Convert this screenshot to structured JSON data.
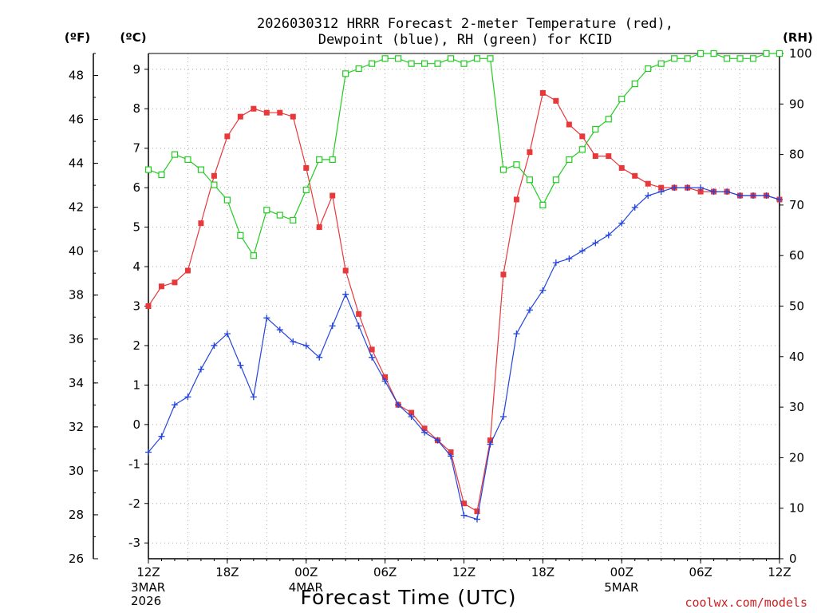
{
  "chart_data": {
    "type": "line",
    "title_line1": "2026030312 HRRR Forecast 2-meter Temperature (red),",
    "title_line2": "Dewpoint (blue), RH (green) for KCID",
    "xlabel": "Forecast Time (UTC)",
    "credit": "coolwx.com/models",
    "units": {
      "fahrenheit": "(ºF)",
      "celsius": "(ºC)",
      "rh": "(RH)"
    },
    "celsius_axis": {
      "range": [
        -3.4,
        9.4
      ],
      "ticks": [
        "-3",
        "-2",
        "-1",
        "0",
        "1",
        "2",
        "3",
        "4",
        "5",
        "6",
        "7",
        "8",
        "9"
      ]
    },
    "fahrenheit_axis": {
      "range": [
        26,
        49
      ],
      "ticks": [
        "26",
        "28",
        "30",
        "32",
        "34",
        "36",
        "38",
        "40",
        "42",
        "44",
        "46",
        "48"
      ]
    },
    "rh_axis": {
      "range": [
        0,
        100
      ],
      "ticks": [
        "0",
        "10",
        "20",
        "30",
        "40",
        "50",
        "60",
        "70",
        "80",
        "90",
        "100"
      ]
    },
    "x_axis": {
      "range_hours": [
        0,
        48
      ],
      "ticks": [
        {
          "hour": 0,
          "label": "12Z",
          "sub1": "3MAR",
          "sub2": "2026"
        },
        {
          "hour": 6,
          "label": "18Z",
          "sub1": "",
          "sub2": ""
        },
        {
          "hour": 12,
          "label": "00Z",
          "sub1": "4MAR",
          "sub2": ""
        },
        {
          "hour": 18,
          "label": "06Z",
          "sub1": "",
          "sub2": ""
        },
        {
          "hour": 24,
          "label": "12Z",
          "sub1": "",
          "sub2": ""
        },
        {
          "hour": 30,
          "label": "18Z",
          "sub1": "",
          "sub2": ""
        },
        {
          "hour": 36,
          "label": "00Z",
          "sub1": "5MAR",
          "sub2": ""
        },
        {
          "hour": 42,
          "label": "06Z",
          "sub1": "",
          "sub2": ""
        },
        {
          "hour": 48,
          "label": "12Z",
          "sub1": "",
          "sub2": ""
        }
      ]
    },
    "grid": true,
    "colors": {
      "temperature": "#e8383a",
      "dewpoint": "#2244dd",
      "rh": "#22cc22",
      "grid": "#aaaaaa"
    },
    "series": [
      {
        "key": "temperature",
        "axis": "celsius",
        "marker": "filled-square",
        "values": [
          3.0,
          3.5,
          3.6,
          3.9,
          5.1,
          6.3,
          7.3,
          7.8,
          8.0,
          7.9,
          7.9,
          7.8,
          6.5,
          5.0,
          5.8,
          3.9,
          2.8,
          1.9,
          1.2,
          0.5,
          0.3,
          -0.1,
          -0.4,
          -0.7,
          -2.0,
          -2.2,
          -0.4,
          3.8,
          5.7,
          6.9,
          8.4,
          8.2,
          7.6,
          7.3,
          6.8,
          6.8,
          6.5,
          6.3,
          6.1,
          6.0,
          6.0,
          6.0,
          5.9,
          5.9,
          5.9,
          5.8,
          5.8,
          5.8,
          5.7
        ]
      },
      {
        "key": "dewpoint",
        "axis": "celsius",
        "marker": "plus",
        "values": [
          -0.7,
          -0.3,
          0.5,
          0.7,
          1.4,
          2.0,
          2.3,
          1.5,
          0.7,
          2.7,
          2.4,
          2.1,
          2.0,
          1.7,
          2.5,
          3.3,
          2.5,
          1.7,
          1.1,
          0.5,
          0.2,
          -0.2,
          -0.4,
          -0.8,
          -2.3,
          -2.4,
          -0.5,
          0.2,
          2.3,
          2.9,
          3.4,
          4.1,
          4.2,
          4.4,
          4.6,
          4.8,
          5.1,
          5.5,
          5.8,
          5.9,
          6.0,
          6.0,
          6.0,
          5.9,
          5.9,
          5.8,
          5.8,
          5.8,
          5.7
        ]
      },
      {
        "key": "rh",
        "axis": "rh",
        "marker": "open-square",
        "values": [
          77,
          76,
          80,
          79,
          77,
          74,
          71,
          64,
          60,
          69,
          68,
          67,
          73,
          79,
          79,
          96,
          97,
          98,
          99,
          99,
          98,
          98,
          98,
          99,
          98,
          99,
          99,
          77,
          78,
          75,
          70,
          75,
          79,
          81,
          85,
          87,
          91,
          94,
          97,
          98,
          99,
          99,
          100,
          100,
          99,
          99,
          99,
          100,
          100
        ]
      }
    ]
  }
}
